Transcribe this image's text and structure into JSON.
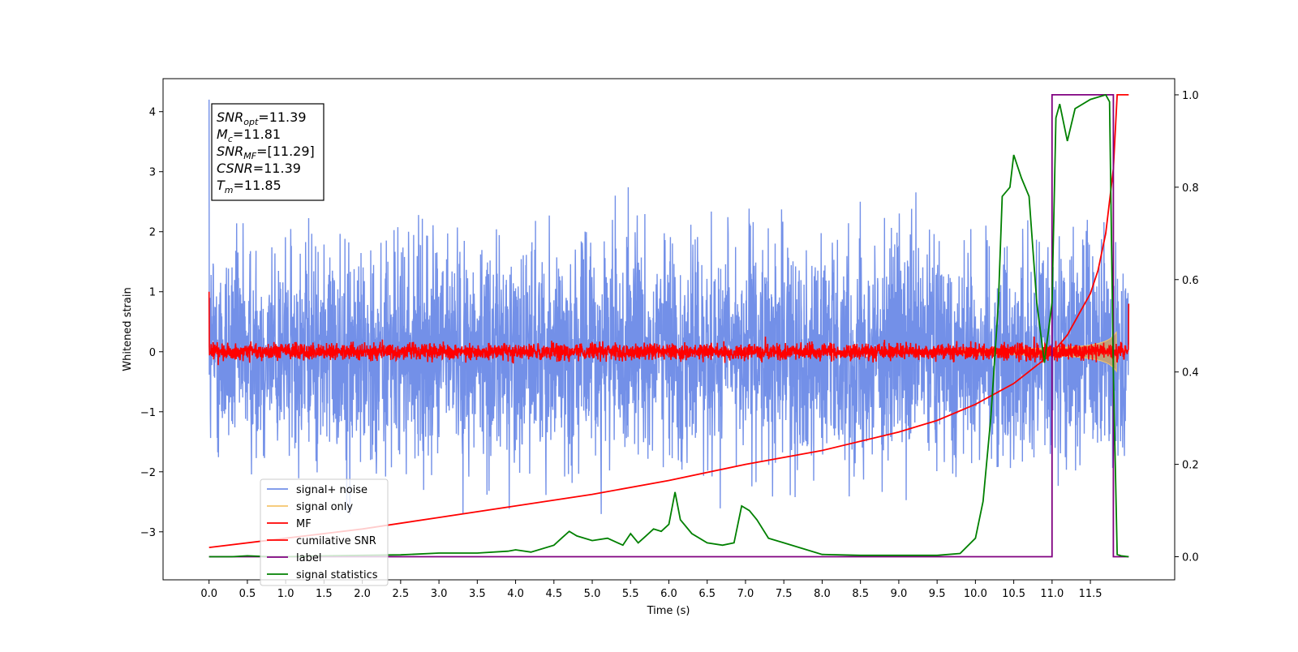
{
  "chart_data": {
    "type": "line",
    "xlabel": "Time (s)",
    "ylabel": "Whitened strain",
    "xlim": [
      -0.6,
      12.6
    ],
    "ylim": [
      -3.8,
      4.55
    ],
    "y2lim": [
      -0.05,
      1.035
    ],
    "x_ticks": [
      "0.0",
      "0.5",
      "1.0",
      "1.5",
      "2.0",
      "2.5",
      "3.0",
      "3.5",
      "4.0",
      "4.5",
      "5.0",
      "5.5",
      "6.0",
      "6.5",
      "7.0",
      "7.5",
      "8.0",
      "8.5",
      "9.0",
      "9.5",
      "10.0",
      "10.5",
      "11.0",
      "11.5"
    ],
    "y_ticks": [
      "4",
      "3",
      "2",
      "1",
      "0",
      "−1",
      "−2",
      "−3"
    ],
    "y2_ticks": [
      "1.0",
      "0.8",
      "0.6",
      "0.4",
      "0.2",
      "0.0"
    ],
    "grid": false,
    "legend_position": "lower-left",
    "annotation": {
      "lines": [
        {
          "sym": "SNR",
          "sub": "opt",
          "val": "=11.39"
        },
        {
          "sym": "M",
          "sub": "c",
          "val": "=11.81"
        },
        {
          "sym": "SNR",
          "sub": "MF",
          "val": "=[11.29]"
        },
        {
          "sym": "CSNR",
          "sub": "",
          "val": "=11.39"
        },
        {
          "sym": "T",
          "sub": "m",
          "val": "=11.85"
        }
      ]
    },
    "series": [
      {
        "name": "signal+ noise",
        "color": "#7390e8",
        "axis": "left",
        "kind": "noise",
        "x_range": [
          0.0,
          12.0
        ],
        "typical_max": 2.3,
        "typical_min": -2.3,
        "peak_max": 4.2,
        "peak_min": -3.45
      },
      {
        "name": "signal only",
        "color": "#f5c46b",
        "axis": "left",
        "kind": "chirp",
        "x_range": [
          0.0,
          11.85
        ],
        "fill_color": "#c0a07a"
      },
      {
        "name": "MF",
        "color": "#ff0000",
        "axis": "left",
        "kind": "noise",
        "x_range": [
          0.0,
          12.0
        ],
        "typical_max": 0.15,
        "typical_min": -0.15,
        "start_value": 1.0,
        "end_value": 0.8
      },
      {
        "name": "cumilative SNR",
        "color": "#ff0000",
        "axis": "right",
        "x": [
          0.0,
          1.0,
          2.0,
          3.0,
          4.0,
          5.0,
          6.0,
          7.0,
          8.0,
          9.0,
          9.5,
          10.0,
          10.5,
          11.0,
          11.2,
          11.4,
          11.5,
          11.6,
          11.7,
          11.8,
          11.85,
          12.0
        ],
        "values": [
          0.02,
          0.04,
          0.06,
          0.085,
          0.11,
          0.135,
          0.165,
          0.2,
          0.23,
          0.27,
          0.295,
          0.33,
          0.375,
          0.44,
          0.48,
          0.54,
          0.57,
          0.62,
          0.7,
          0.84,
          1.0,
          1.0
        ]
      },
      {
        "name": "label",
        "color": "#800080",
        "axis": "right",
        "x": [
          0.0,
          11.0,
          11.0,
          11.8,
          11.8,
          12.0
        ],
        "values": [
          0.0,
          0.0,
          1.0,
          1.0,
          0.0,
          0.0
        ]
      },
      {
        "name": "signal statistics",
        "color": "#008000",
        "axis": "right",
        "x": [
          0.0,
          0.3,
          0.5,
          0.8,
          1.0,
          1.5,
          2.0,
          2.5,
          3.0,
          3.5,
          3.9,
          4.0,
          4.2,
          4.5,
          4.6,
          4.7,
          4.8,
          4.9,
          5.0,
          5.2,
          5.4,
          5.5,
          5.6,
          5.7,
          5.8,
          5.9,
          6.0,
          6.08,
          6.15,
          6.3,
          6.5,
          6.7,
          6.85,
          6.95,
          7.05,
          7.15,
          7.3,
          7.5,
          7.7,
          8.0,
          8.5,
          9.0,
          9.5,
          9.8,
          10.0,
          10.1,
          10.2,
          10.3,
          10.35,
          10.45,
          10.5,
          10.6,
          10.7,
          10.8,
          10.9,
          11.0,
          11.05,
          11.1,
          11.2,
          11.3,
          11.5,
          11.7,
          11.75,
          11.8,
          11.85,
          11.9,
          12.0
        ],
        "values": [
          0.0,
          0.0,
          0.002,
          0.0,
          0.0,
          0.002,
          0.003,
          0.004,
          0.008,
          0.008,
          0.012,
          0.015,
          0.01,
          0.025,
          0.04,
          0.055,
          0.045,
          0.04,
          0.035,
          0.04,
          0.025,
          0.05,
          0.03,
          0.045,
          0.06,
          0.055,
          0.07,
          0.14,
          0.08,
          0.05,
          0.03,
          0.025,
          0.03,
          0.11,
          0.1,
          0.08,
          0.04,
          0.03,
          0.02,
          0.005,
          0.003,
          0.003,
          0.003,
          0.007,
          0.04,
          0.12,
          0.3,
          0.55,
          0.78,
          0.8,
          0.87,
          0.82,
          0.78,
          0.55,
          0.42,
          0.55,
          0.95,
          0.98,
          0.9,
          0.97,
          0.99,
          1.0,
          0.985,
          0.4,
          0.005,
          0.002,
          0.0
        ]
      }
    ]
  }
}
